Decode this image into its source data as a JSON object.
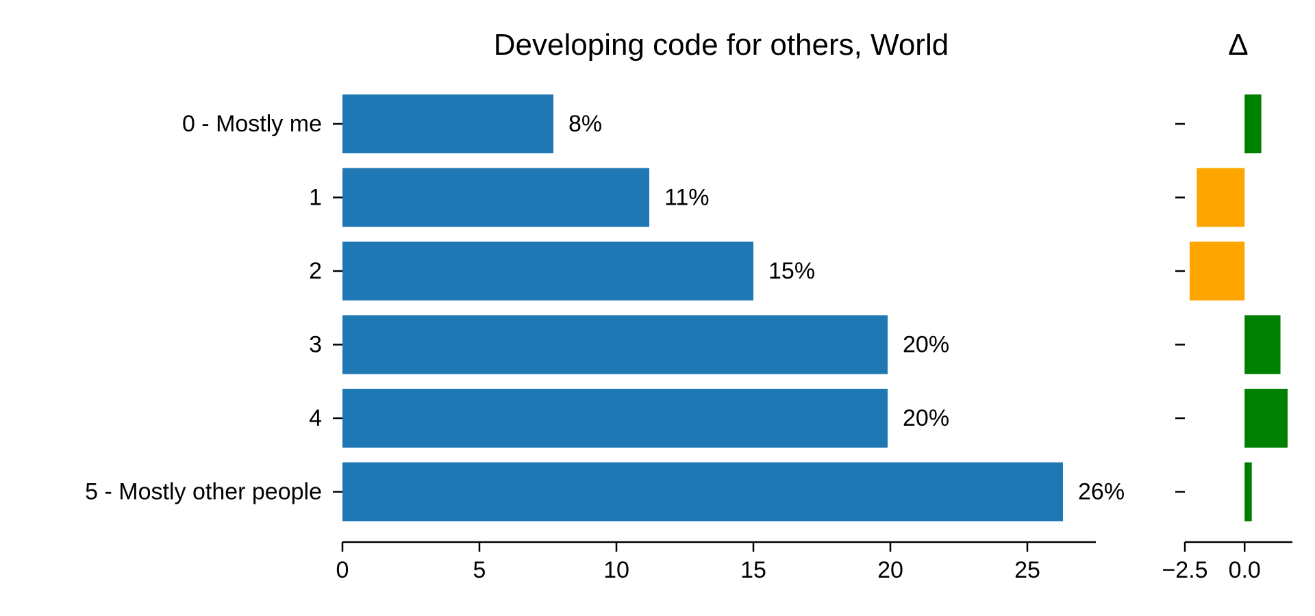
{
  "chart_data": [
    {
      "type": "bar",
      "orientation": "horizontal",
      "title": "Developing code for others, World",
      "categories": [
        "0 - Mostly me",
        "1",
        "2",
        "3",
        "4",
        "5 - Mostly other people"
      ],
      "values": [
        7.7,
        11.2,
        15.0,
        19.9,
        19.9,
        26.3
      ],
      "data_labels": [
        "8%",
        "11%",
        "15%",
        "20%",
        "20%",
        "26%"
      ],
      "xlim": [
        0,
        27.5
      ],
      "xticks": [
        0,
        5,
        10,
        15,
        20,
        25
      ],
      "bar_color": "#1f77b4",
      "grid": false
    },
    {
      "type": "bar",
      "orientation": "horizontal",
      "title": "Δ",
      "categories": [
        "0 - Mostly me",
        "1",
        "2",
        "3",
        "4",
        "5 - Mostly other people"
      ],
      "values": [
        0.7,
        -2.0,
        -2.3,
        1.5,
        1.8,
        0.3
      ],
      "xlim": [
        -2.5,
        2.0
      ],
      "xticks": [
        -2.5,
        0.0
      ],
      "xtick_labels": [
        "−2.5",
        "0.0"
      ],
      "positive_color": "#008000",
      "negative_color": "#ffa500",
      "grid": false
    }
  ]
}
